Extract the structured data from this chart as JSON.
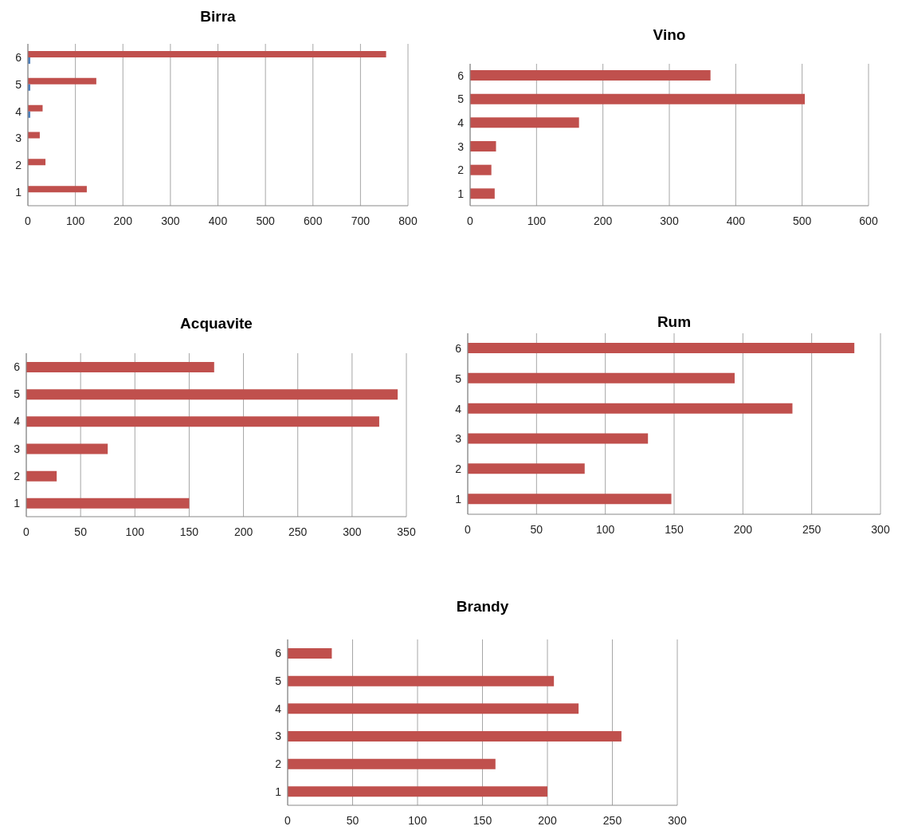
{
  "chart_data": [
    {
      "type": "bar",
      "orientation": "horizontal",
      "title": "Birra",
      "categories": [
        "6",
        "5",
        "4",
        "3",
        "2",
        "1"
      ],
      "series": [
        {
          "color": "#c0504d",
          "values": [
            754,
            144,
            31,
            25,
            37,
            124
          ]
        },
        {
          "color": "#4f81bd",
          "values": [
            5,
            5,
            5,
            null,
            null,
            null
          ]
        }
      ],
      "xlim": [
        0,
        800
      ],
      "xticks": [
        0,
        100,
        200,
        300,
        400,
        500,
        600,
        700,
        800
      ],
      "grid": "x"
    },
    {
      "type": "bar",
      "orientation": "horizontal",
      "title": "Vino",
      "categories": [
        "6",
        "5",
        "4",
        "3",
        "2",
        "1"
      ],
      "series": [
        {
          "color": "#c0504d",
          "values": [
            362,
            504,
            164,
            39,
            32,
            37
          ]
        }
      ],
      "xlim": [
        0,
        600
      ],
      "xticks": [
        0,
        100,
        200,
        300,
        400,
        500,
        600
      ],
      "grid": "x"
    },
    {
      "type": "bar",
      "orientation": "horizontal",
      "title": "Acquavite",
      "categories": [
        "6",
        "5",
        "4",
        "3",
        "2",
        "1"
      ],
      "series": [
        {
          "color": "#c0504d",
          "values": [
            173,
            342,
            325,
            75,
            28,
            150
          ]
        }
      ],
      "xlim": [
        0,
        350
      ],
      "xticks": [
        0,
        50,
        100,
        150,
        200,
        250,
        300,
        350
      ],
      "grid": "x"
    },
    {
      "type": "bar",
      "orientation": "horizontal",
      "title": "Rum",
      "categories": [
        "6",
        "5",
        "4",
        "3",
        "2",
        "1"
      ],
      "series": [
        {
          "color": "#c0504d",
          "values": [
            281,
            194,
            236,
            131,
            85,
            148
          ]
        }
      ],
      "xlim": [
        0,
        300
      ],
      "xticks": [
        0,
        50,
        100,
        150,
        200,
        250,
        300
      ],
      "grid": "x"
    },
    {
      "type": "bar",
      "orientation": "horizontal",
      "title": "Brandy",
      "categories": [
        "6",
        "5",
        "4",
        "3",
        "2",
        "1"
      ],
      "series": [
        {
          "color": "#c0504d",
          "values": [
            34,
            205,
            224,
            257,
            160,
            200
          ]
        }
      ],
      "xlim": [
        0,
        300
      ],
      "xticks": [
        0,
        50,
        100,
        150,
        200,
        250,
        300
      ],
      "grid": "x"
    }
  ]
}
